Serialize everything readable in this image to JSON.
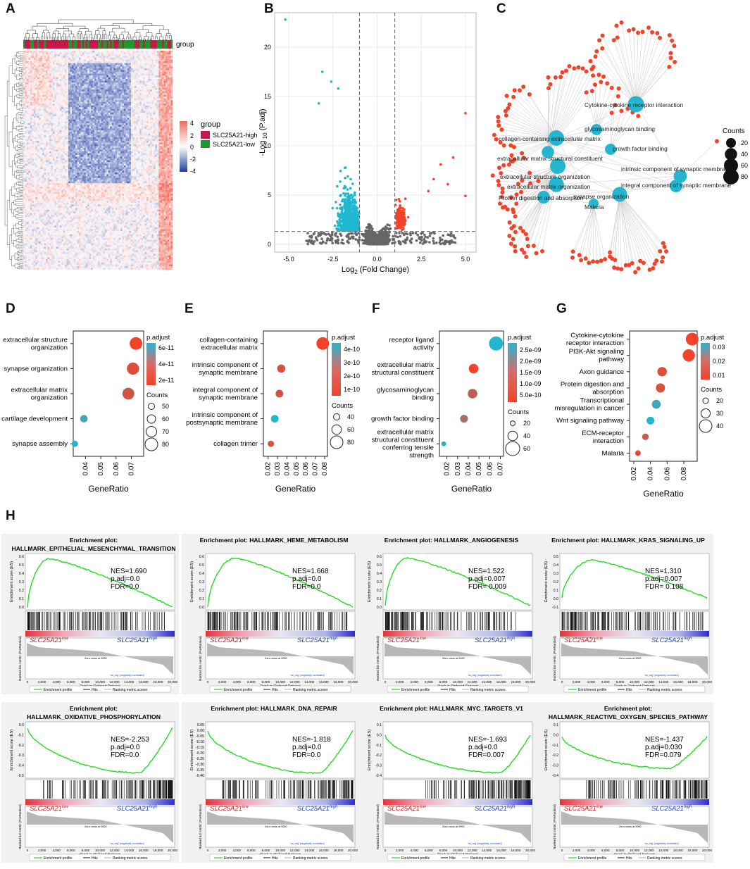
{
  "panels": {
    "A": "A",
    "B": "B",
    "C": "C",
    "D": "D",
    "E": "E",
    "F": "F",
    "G": "G",
    "H": "H"
  },
  "heatmap": {
    "group_label": "group",
    "legend_title": "group",
    "legend_items": [
      "SLC25A21-high",
      "SLC25A21-low"
    ],
    "group_colors": [
      "#c8174a",
      "#1a9a2a"
    ],
    "scale_ticks": [
      "4",
      "2",
      "0",
      "-2",
      "-4"
    ],
    "scale_colors": [
      "#f26b5b",
      "#ffffff",
      "#1f3ea6"
    ]
  },
  "chart_data": [
    {
      "id": "volcano",
      "type": "scatter",
      "title": "",
      "xlabel": "Log2 (Fold Change)",
      "ylabel": "-Log 10 (P.adj)",
      "xlim": [
        -5.8,
        5.6
      ],
      "ylim": [
        -0.8,
        23.5
      ],
      "xticks": [
        "-5.0",
        "-2.5",
        "0.0",
        "2.5",
        "5.0"
      ],
      "xtick_values": [
        -5,
        -2.5,
        0,
        2.5,
        5
      ],
      "yticks": [
        "0",
        "5",
        "10",
        "15",
        "20"
      ],
      "ytick_values": [
        0,
        5,
        10,
        15,
        20
      ],
      "thresholds": {
        "x": [
          -1,
          1
        ],
        "y": 1.3
      },
      "colors": {
        "down": "#1fb8d0",
        "up": "#f0432a",
        "ns": "#666666"
      },
      "highlight_points": [
        [
          -5.2,
          22.8
        ],
        [
          5.0,
          13.3
        ],
        [
          5.0,
          4.9
        ],
        [
          4.3,
          8.8
        ],
        [
          3.6,
          8.1
        ],
        [
          3.2,
          6.6
        ],
        [
          2.9,
          5.4
        ],
        [
          4.0,
          6.1
        ],
        [
          -3.1,
          17.5
        ],
        [
          -2.6,
          16.5
        ],
        [
          -2.2,
          15.8
        ],
        [
          -3.3,
          14.3
        ]
      ]
    },
    {
      "id": "network",
      "type": "network",
      "legend_title": "Counts",
      "legend_sizes": [
        20,
        40,
        60,
        80
      ],
      "hubs": [
        {
          "label": "Cytokine-cytokine receptor interaction",
          "count": 90
        },
        {
          "label": "glycosaminoglycan binding",
          "count": 30
        },
        {
          "label": "collagen-containing extracellular matrix",
          "count": 80
        },
        {
          "label": "growth factor binding",
          "count": 30
        },
        {
          "label": "extracellular matrix structural constituent",
          "count": 40
        },
        {
          "label": "intrinsic component of synaptic membrane",
          "count": 50
        },
        {
          "label": "extracellular structure organization",
          "count": 80
        },
        {
          "label": "integral component of synaptic membrane",
          "count": 45
        },
        {
          "label": "extracellular matrix organization",
          "count": 75
        },
        {
          "label": "synapse organization",
          "count": 70
        },
        {
          "label": "Protein digestion and absorption",
          "count": 45
        },
        {
          "label": "Malaria",
          "count": 20
        }
      ],
      "colors": {
        "hub": "#26b5cf",
        "gene": "#f0432a",
        "edge": "#bbbbbb"
      }
    },
    {
      "id": "D",
      "type": "scatter",
      "xlabel": "GeneRatio",
      "xlim": [
        0.032,
        0.078
      ],
      "xticks": [
        "0.04",
        "0.05",
        "0.06",
        "0.07"
      ],
      "xtick_values": [
        0.04,
        0.05,
        0.06,
        0.07
      ],
      "categories": [
        [
          "extracellular structure",
          "organization"
        ],
        [
          "synapse organization"
        ],
        [
          "extracellular matrix",
          "organization"
        ],
        [
          "cartilage development"
        ],
        [
          "synapse assembly"
        ]
      ],
      "gene_ratio": [
        0.073,
        0.071,
        0.068,
        0.039,
        0.033
      ],
      "counts": [
        84,
        80,
        78,
        48,
        40
      ],
      "p_adjust": [
        1e-11,
        1.5e-11,
        2e-11,
        6e-11,
        7e-11
      ],
      "color_legend_title": "p.adjust",
      "color_ticks": [
        "6e-11",
        "4e-11",
        "2e-11"
      ],
      "size_legend_title": "Counts",
      "size_ticks": [
        50,
        60,
        70,
        80
      ]
    },
    {
      "id": "E",
      "type": "scatter",
      "xlabel": "GeneRatio",
      "xlim": [
        0.015,
        0.083
      ],
      "xticks": [
        "0.02",
        "0.03",
        "0.04",
        "0.05",
        "0.06",
        "0.07",
        "0.08"
      ],
      "xtick_values": [
        0.02,
        0.03,
        0.04,
        0.05,
        0.06,
        0.07,
        0.08
      ],
      "categories": [
        [
          "collagen-containing",
          "extracellular matrix"
        ],
        [
          "intrinsic component of",
          "synaptic membrane"
        ],
        [
          "integral component of",
          "synaptic membrane"
        ],
        [
          "intrinsic component of",
          "postsynaptic membrane"
        ],
        [
          "collagen trimer"
        ]
      ],
      "gene_ratio": [
        0.078,
        0.034,
        0.032,
        0.027,
        0.023
      ],
      "counts": [
        72,
        44,
        41,
        40,
        32
      ],
      "p_adjust": [
        5e-11,
        1e-10,
        1e-10,
        4e-10,
        1e-10
      ],
      "color_legend_title": "p.adjust",
      "color_ticks": [
        "4e-10",
        "3e-10",
        "2e-10",
        "1e-10"
      ],
      "size_legend_title": "Counts",
      "size_ticks": [
        40,
        60,
        80
      ]
    },
    {
      "id": "F",
      "type": "scatter",
      "xlabel": "GeneRatio",
      "xlim": [
        0.013,
        0.073
      ],
      "xticks": [
        "0.02",
        "0.03",
        "0.04",
        "0.05",
        "0.06",
        "0.07"
      ],
      "xtick_values": [
        0.02,
        0.03,
        0.04,
        0.05,
        0.06,
        0.07
      ],
      "categories": [
        [
          "receptor ligand",
          "activity"
        ],
        [
          "extracellular matrix",
          "structural constituent"
        ],
        [
          "glycosaminoglycan",
          "binding"
        ],
        [
          "growth factor binding"
        ],
        [
          "extracellular matrix",
          "structural constituent",
          "conferring tensile",
          "strength"
        ]
      ],
      "gene_ratio": [
        0.066,
        0.045,
        0.044,
        0.036,
        0.017
      ],
      "counts": [
        66,
        40,
        40,
        30,
        14
      ],
      "p_adjust": [
        2.7e-09,
        2e-10,
        8e-10,
        1.1e-09,
        2.6e-09
      ],
      "color_legend_title": "p.adjust",
      "color_ticks": [
        "2.5e-09",
        "2.0e-09",
        "1.5e-09",
        "1.0e-09",
        "5.0e-10"
      ],
      "size_legend_title": "Counts",
      "size_ticks": [
        20,
        40,
        60
      ]
    },
    {
      "id": "G",
      "type": "scatter",
      "xlabel": "GeneRatio",
      "xlim": [
        0.015,
        0.096
      ],
      "xticks": [
        "0.02",
        "0.04",
        "0.06",
        "0.08"
      ],
      "xtick_values": [
        0.02,
        0.04,
        0.06,
        0.08
      ],
      "categories": [
        [
          "Cytokine-cytokine",
          "receptor interaction"
        ],
        [
          "PI3K-Akt signaling",
          "pathway"
        ],
        [
          "Axon guidance"
        ],
        [
          "Protein digestion and",
          "absorption"
        ],
        [
          "Transcriptional",
          "misregulation in cancer"
        ],
        [
          "Wnt signaling pathway"
        ],
        [
          "ECM-receptor",
          "interaction"
        ],
        [
          "Malaria"
        ]
      ],
      "gene_ratio": [
        0.09,
        0.086,
        0.054,
        0.052,
        0.047,
        0.04,
        0.034,
        0.025
      ],
      "counts": [
        46,
        44,
        32,
        31,
        30,
        25,
        20,
        16
      ],
      "p_adjust": [
        0.001,
        0.001,
        0.004,
        0.005,
        0.03,
        0.034,
        0.008,
        0.004
      ],
      "color_legend_title": "p.adjust",
      "color_ticks": [
        "0.03",
        "0.02",
        "0.01"
      ],
      "size_legend_title": "Counts",
      "size_ticks": [
        20,
        30,
        40
      ]
    },
    {
      "id": "H",
      "type": "line",
      "common": {
        "ylabel": "Enrichment score (ES)",
        "metric_label": "Ranked list metric (PreRanked)",
        "xlabel": "Rank in Ordered Dataset",
        "xticks": [
          "0",
          "2,000",
          "4,000",
          "6,000",
          "8,000",
          "10,000",
          "12,000",
          "14,000",
          "16,000",
          "18,000",
          "20,000"
        ],
        "low_label": "SLC25A21",
        "low_sup": "low",
        "high_label": "SLC25A21",
        "high_sup": "high",
        "pos_label": "'na_pos' (positively correlated)",
        "neg_label": "'na_neg' (negatively correlated)",
        "zero_label": "Zero cross at 9990",
        "legend": [
          "Enrichment profile",
          "Hits",
          "Ranking metric scores"
        ]
      },
      "plots": [
        {
          "title": [
            "Enrichment plot:",
            "HALLMARK_EPITHELIAL_MESENCHYMAL_TRANSITION"
          ],
          "nes": "NES=1.690",
          "padj": "p.adj=0.0",
          "fdr": "FDR=0.0",
          "yticks": [
            "0.6",
            "0.5",
            "0.4",
            "0.3",
            "0.2",
            "0.1",
            "0.0"
          ],
          "ymin": 0,
          "ymax": 0.66,
          "peak_rank": 3000,
          "peak": 0.63,
          "end": 0.0,
          "hits_start": 0.0,
          "hits_end": 0.96
        },
        {
          "title": [
            "Enrichment plot: HALLMARK_HEME_METABOLISM"
          ],
          "nes": "NES=1.668",
          "padj": "p.adj=0.0",
          "fdr": "FDR=0.0",
          "yticks": [
            "0.6",
            "0.5",
            "0.4",
            "0.3",
            "0.2",
            "0.1",
            "0.0"
          ],
          "ymin": 0,
          "ymax": 0.66,
          "peak_rank": 3800,
          "peak": 0.64,
          "end": 0.0,
          "hits_start": 0.0,
          "hits_end": 0.98
        },
        {
          "title": [
            "Enrichment plot: HALLMARK_ANGIOGENESIS"
          ],
          "nes": "NES=1.522",
          "padj": "p.adj=0.007",
          "fdr": "FDR= 0.009",
          "yticks": [
            "0.6",
            "0.5",
            "0.4",
            "0.3",
            "0.2",
            "0.1",
            "0.0"
          ],
          "ymin": -0.02,
          "ymax": 0.66,
          "peak_rank": 3000,
          "peak": 0.64,
          "end": 0.0,
          "hits_start": 0.0,
          "hits_end": 0.9
        },
        {
          "title": [
            "Enrichment plot: HALLMARK_KRAS_SIGNALING_UP"
          ],
          "nes": "NES=1.310",
          "padj": "p.adj=0.007",
          "fdr": "FDR= 0.108",
          "yticks": [
            "0.5",
            "0.4",
            "0.3",
            "0.2",
            "0.1",
            "0.0",
            "-0.1"
          ],
          "ymin": -0.12,
          "ymax": 0.55,
          "peak_rank": 4200,
          "peak": 0.5,
          "end": 0.0,
          "hits_start": 0.0,
          "hits_end": 0.98
        },
        {
          "title": [
            "Enrichment plot:",
            "HALLMARK_OXIDATIVE_PHOSPHORYLATION"
          ],
          "nes": "NES=-2.253",
          "padj": "p.adj=0.0",
          "fdr": "FDR=0.0",
          "yticks": [
            "0.0",
            "-0.1",
            "-0.2",
            "-0.3",
            "-0.4",
            "-0.5"
          ],
          "ymin": -0.58,
          "ymax": 0.04,
          "peak_rank": 15500,
          "peak": -0.55,
          "end": 0.0,
          "hits_start": 0.1,
          "hits_end": 1.0
        },
        {
          "title": [
            "Enrichment plot: HALLMARK_DNA_REPAIR"
          ],
          "nes": "NES=-1.818",
          "padj": "p.adj=0.0",
          "fdr": "FDR=0.0",
          "yticks": [
            "0.05",
            "0.00",
            "-0.05",
            "-0.10",
            "-0.15",
            "-0.20",
            "-0.25",
            "-0.30",
            "-0.35",
            "-0.40"
          ],
          "ymin": -0.42,
          "ymax": 0.06,
          "peak_rank": 15500,
          "peak": -0.4,
          "end": 0.0,
          "hits_start": 0.1,
          "hits_end": 1.0
        },
        {
          "title": [
            "Enrichment plot: HALLMARK_MYC_TARGETS_V1"
          ],
          "nes": "NES=-1.693",
          "padj": "p.adj=0.0",
          "fdr": "FDR=0.007",
          "yticks": [
            "0.1",
            "0.0",
            "-0.1",
            "-0.2",
            "-0.3",
            "-0.4"
          ],
          "ymin": -0.46,
          "ymax": 0.12,
          "peak_rank": 16000,
          "peak": -0.43,
          "end": 0.0,
          "hits_start": 0.25,
          "hits_end": 1.0
        },
        {
          "title": [
            "Enrichment plot:",
            "HALLMARK_REACTIVE_OXYGEN_SPECIES_PATHWAY"
          ],
          "nes": "NES=-1.437",
          "padj": "p.adj=0.030",
          "fdr": "FDR=0.079",
          "yticks": [
            "0.1",
            "0.0",
            "-0.1",
            "-0.2",
            "-0.3",
            "-0.4"
          ],
          "ymin": -0.44,
          "ymax": 0.14,
          "peak_rank": 15000,
          "peak": -0.36,
          "end": 0.0,
          "hits_start": 0.15,
          "hits_end": 1.0
        }
      ]
    }
  ]
}
